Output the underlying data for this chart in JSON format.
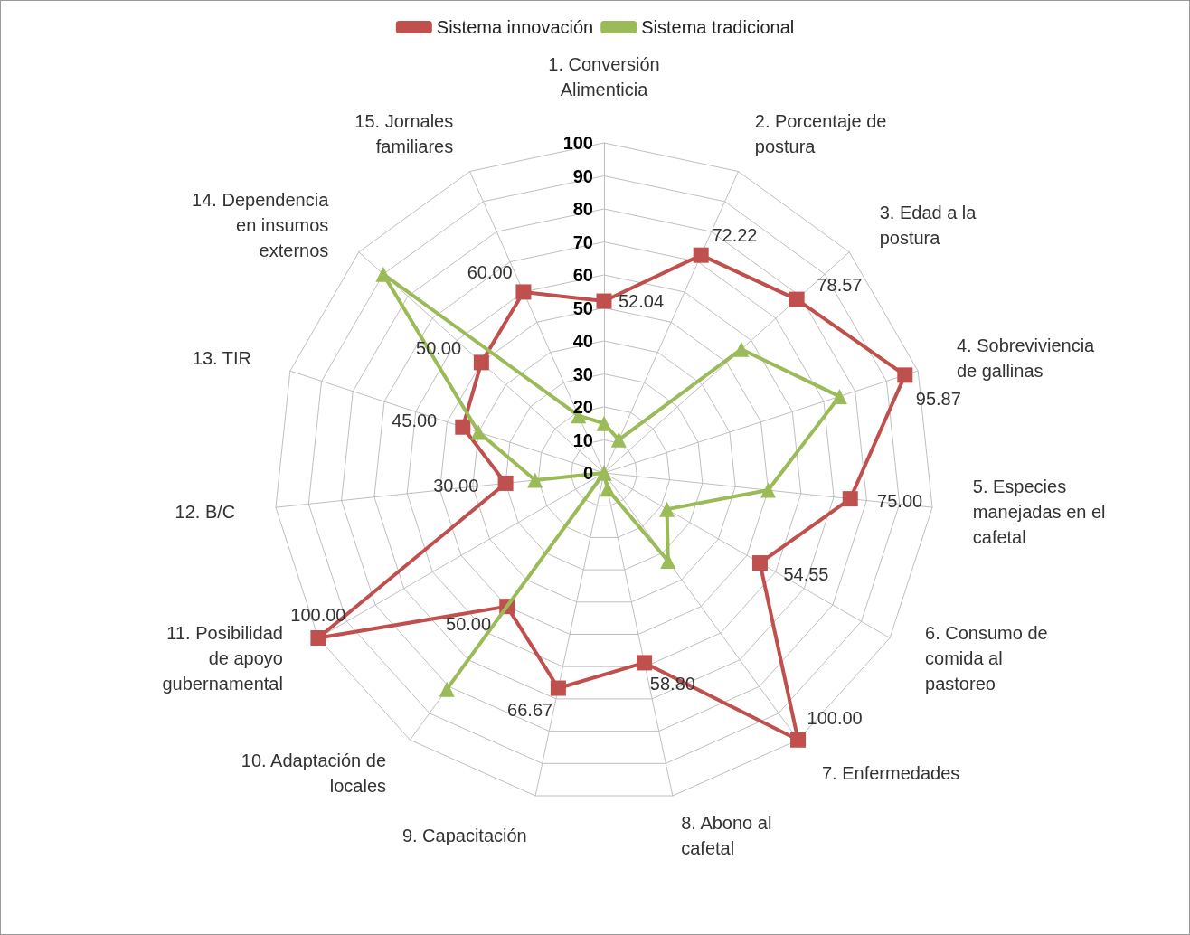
{
  "chart_data": {
    "type": "radar",
    "categories": [
      "1. Conversión Alimenticia",
      "2. Porcentaje de postura",
      "3. Edad a la postura",
      "4. Sobreviviencia de gallinas",
      "5. Especies manejadas en el cafetal",
      "6. Consumo de comida al pastoreo",
      "7. Enfermedades",
      "8. Abono al cafetal",
      "9. Capacitación",
      "10. Adaptación de locales",
      "11. Posibilidad de apoyo gubernamental",
      "12. B/C",
      "13. TIR",
      "14. Dependencia en insumos externos",
      "15. Jornales familiares"
    ],
    "series": [
      {
        "name": "Sistema innovación",
        "color": "#c0504d",
        "marker": "square",
        "values": [
          52.04,
          72.22,
          78.57,
          95.87,
          75.0,
          54.55,
          100.0,
          58.8,
          66.67,
          50.0,
          100.0,
          30.0,
          45.0,
          50.0,
          60.0
        ],
        "value_labels": [
          "52.04",
          "72.22",
          "78.57",
          "95.87",
          "75.00",
          "54.55",
          "100.00",
          "58.80",
          "66.67",
          "50.00",
          "100.00",
          "30.00",
          "45.00",
          "50.00",
          "60.00"
        ]
      },
      {
        "name": "Sistema tradicional",
        "color": "#9bbb59",
        "marker": "triangle",
        "values": [
          15,
          11,
          56,
          75,
          50,
          22,
          33,
          5,
          0,
          81,
          0,
          21,
          40,
          90,
          19
        ]
      }
    ],
    "ylim": [
      0,
      100
    ],
    "yticks": [
      0,
      10,
      20,
      30,
      40,
      50,
      60,
      70,
      80,
      90,
      100
    ],
    "grid": true,
    "legend": "top"
  }
}
